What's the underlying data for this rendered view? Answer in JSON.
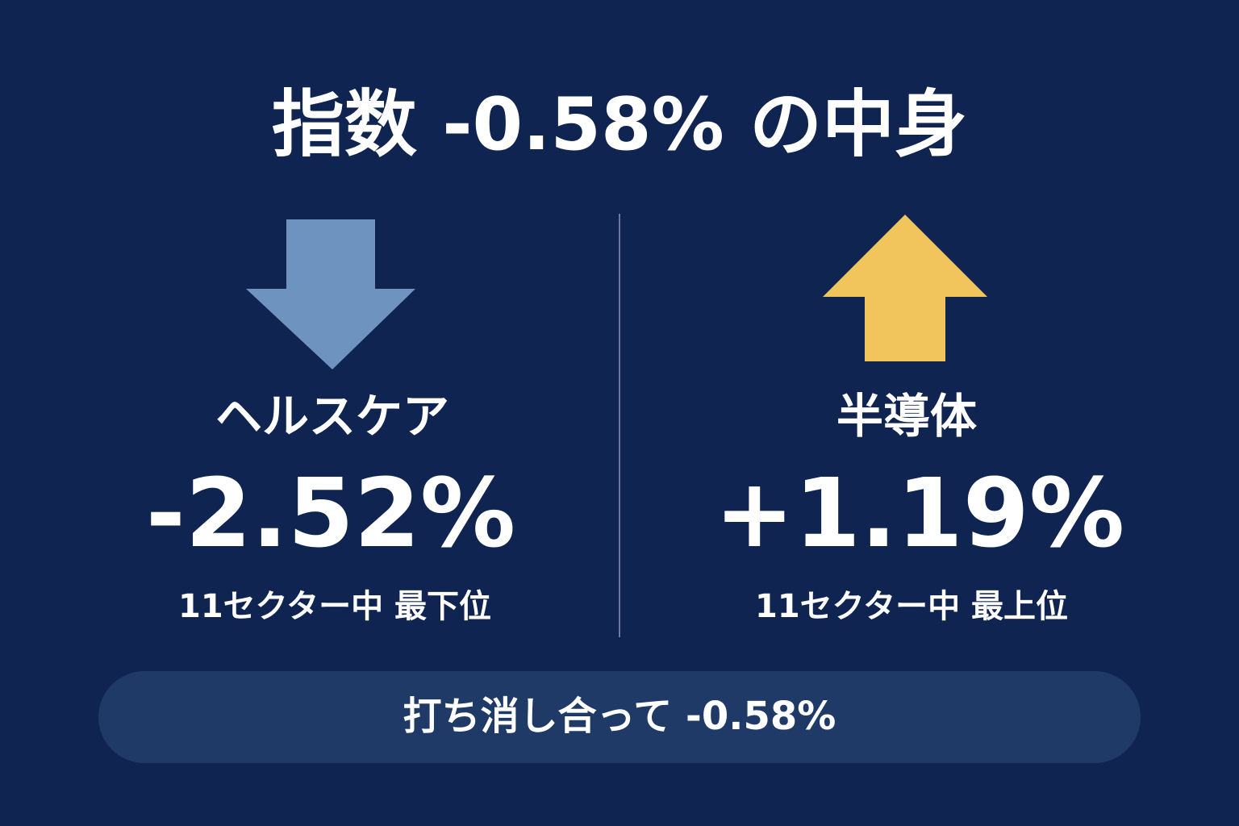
{
  "title": "指数 -0.58% の中身",
  "panels": [
    {
      "label": "ヘルスケア",
      "value": "-2.52%",
      "rank": "11セクター中 最下位"
    },
    {
      "label": "半導体",
      "value": "+1.19%",
      "rank": "11セクター中 最上位"
    }
  ],
  "footer": "打ち消し合って -0.58%"
}
